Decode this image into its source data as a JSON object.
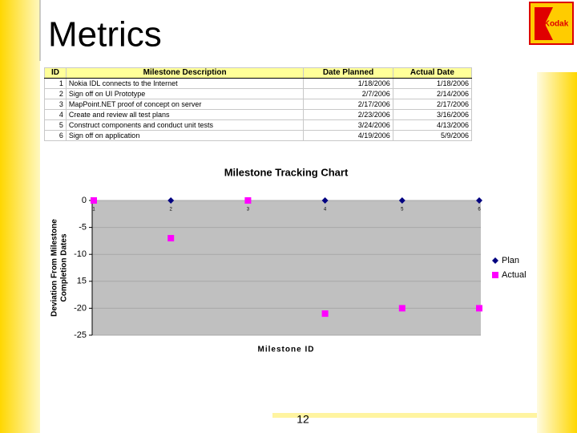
{
  "title": "Metrics",
  "logo": "Kodak",
  "table": {
    "header": [
      "ID",
      "Milestone Description",
      "Date Planned",
      "Actual Date"
    ],
    "rows": [
      [
        "1",
        "Nokia IDL connects to the Internet",
        "1/18/2006",
        "1/18/2006"
      ],
      [
        "2",
        "Sign off on UI Prototype",
        "2/7/2006",
        "2/14/2006"
      ],
      [
        "3",
        "MapPoint.NET proof of concept on server",
        "2/17/2006",
        "2/17/2006"
      ],
      [
        "4",
        "Create and review all test plans",
        "2/23/2006",
        "3/16/2006"
      ],
      [
        "5",
        "Construct components and conduct unit tests",
        "3/24/2006",
        "4/13/2006"
      ],
      [
        "6",
        "Sign off on application",
        "4/19/2006",
        "5/9/2006"
      ]
    ]
  },
  "chart_data": {
    "type": "line",
    "title": "Milestone Tracking Chart",
    "x_label": "Milestone ID",
    "y_label": [
      "Deviation From Milestone",
      "Completion Dates"
    ],
    "categories": [
      "1",
      "2",
      "3",
      "4",
      "5",
      "6"
    ],
    "series": [
      {
        "name": "Plan",
        "color": "#000080",
        "marker": "diamond",
        "values": [
          0,
          0,
          0,
          0,
          0,
          0
        ]
      },
      {
        "name": "Actual",
        "color": "#ff00ff",
        "marker": "square",
        "values": [
          0,
          -7,
          0,
          -21,
          -20,
          -20
        ]
      }
    ],
    "ylim": [
      -25,
      0
    ],
    "yticks": [
      0,
      -5,
      -10,
      {
        "value": -15,
        "label": "15"
      },
      -20,
      -25
    ],
    "grid": true,
    "legend": "right"
  },
  "page_number": "12"
}
